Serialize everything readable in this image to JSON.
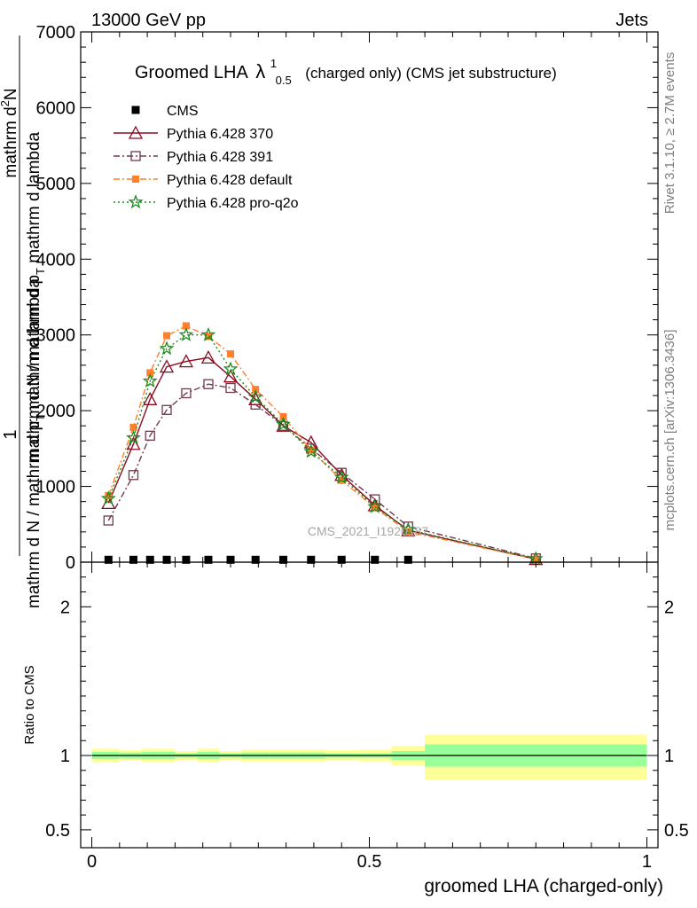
{
  "header": {
    "energy_label": "13000 GeV pp",
    "process_label": "Jets"
  },
  "side_labels": {
    "rivet": "Rivet 3.1.10, ≥ 2.7M events",
    "mcplots": "mcplots.cern.ch [arXiv:1306.3436]"
  },
  "watermark": "CMS_2021_I1920187",
  "chart_data": [
    {
      "type": "line",
      "title": {
        "main": "Groomed LHA",
        "lambda": "λ",
        "sup": "1",
        "sub": "0.5",
        "rest": "(charged only) (CMS jet substructure)"
      },
      "ylabel": {
        "one": "1",
        "line1": "mathrm d N / mathrm d p",
        "line1_sub": "T",
        "line1_rest": " mathrm d lambda",
        "numerator": "mathrm d",
        "numerator_sup": "2",
        "numerator_rest": "N",
        "denominator": "mathrm d N / mathrm d p",
        "denominator_sub": "T",
        "denominator_rest": " mathrm d lambda"
      },
      "xlim": [
        -0.02,
        1.02
      ],
      "ylim": [
        0,
        7000
      ],
      "y_ticks": [
        0,
        1000,
        2000,
        3000,
        4000,
        5000,
        6000,
        7000
      ],
      "y_tick_labels": [
        "0",
        "1000",
        "2000",
        "3000",
        "4000",
        "5000",
        "6000",
        "7000"
      ],
      "legend_position": "top-left",
      "colors": {
        "cms": "#000000",
        "py370": "#8b0a1e",
        "py391": "#6e3b4b",
        "pydef": "#ff7f2a",
        "pyq2o": "#1a8c1a"
      },
      "series": [
        {
          "name": "CMS",
          "marker": "square-filled",
          "x": [
            0.03,
            0.075,
            0.105,
            0.135,
            0.17,
            0.21,
            0.25,
            0.295,
            0.345,
            0.395,
            0.45,
            0.51,
            0.57
          ],
          "values": [
            20,
            20,
            20,
            20,
            20,
            20,
            20,
            20,
            20,
            20,
            20,
            20,
            20
          ]
        },
        {
          "name": "Pythia 6.428 370",
          "marker": "triangle-open",
          "x": [
            0.03,
            0.075,
            0.105,
            0.135,
            0.17,
            0.21,
            0.25,
            0.295,
            0.345,
            0.395,
            0.45,
            0.51,
            0.57,
            0.8
          ],
          "values": [
            780,
            1560,
            2150,
            2580,
            2650,
            2700,
            2450,
            2150,
            1800,
            1580,
            1150,
            750,
            420,
            40
          ]
        },
        {
          "name": "Pythia 6.428 391",
          "marker": "square-open",
          "x": [
            0.03,
            0.075,
            0.105,
            0.135,
            0.17,
            0.21,
            0.25,
            0.295,
            0.345,
            0.395,
            0.45,
            0.51,
            0.57,
            0.8
          ],
          "values": [
            550,
            1150,
            1670,
            2010,
            2230,
            2350,
            2300,
            2080,
            1800,
            1500,
            1180,
            830,
            470,
            50
          ]
        },
        {
          "name": "Pythia 6.428 default",
          "marker": "square-filled-small",
          "x": [
            0.03,
            0.075,
            0.105,
            0.135,
            0.17,
            0.21,
            0.25,
            0.295,
            0.345,
            0.395,
            0.45,
            0.51,
            0.57,
            0.8
          ],
          "values": [
            880,
            1780,
            2500,
            2990,
            3120,
            2980,
            2750,
            2280,
            1920,
            1480,
            1080,
            720,
            400,
            40
          ]
        },
        {
          "name": "Pythia 6.428 pro-q2o",
          "marker": "star",
          "x": [
            0.03,
            0.075,
            0.105,
            0.135,
            0.17,
            0.21,
            0.25,
            0.295,
            0.345,
            0.395,
            0.45,
            0.51,
            0.57,
            0.8
          ],
          "values": [
            840,
            1640,
            2390,
            2820,
            3000,
            3000,
            2550,
            2180,
            1820,
            1460,
            1120,
            730,
            430,
            45
          ]
        }
      ]
    },
    {
      "type": "area",
      "ylabel": "Ratio to CMS",
      "xlabel": "groomed LHA (charged-only)",
      "xlim": [
        -0.02,
        1.02
      ],
      "ylim": [
        0.38,
        2.3
      ],
      "x_ticks": [
        0,
        0.5,
        1
      ],
      "x_tick_labels": [
        "0",
        "0.5",
        "1"
      ],
      "y_ticks": [
        0.5,
        1,
        2
      ],
      "y_tick_labels": [
        "0.5",
        "1",
        "2"
      ],
      "reference_line": 1,
      "band_colors": {
        "stat": "#99ff99",
        "total": "#ffff99"
      },
      "bands": [
        {
          "x0": 0.0,
          "x1": 0.05,
          "stat_lo": 0.975,
          "stat_hi": 1.025,
          "tot_lo": 0.955,
          "tot_hi": 1.045
        },
        {
          "x0": 0.05,
          "x1": 0.09,
          "stat_lo": 0.98,
          "stat_hi": 1.02,
          "tot_lo": 0.965,
          "tot_hi": 1.035
        },
        {
          "x0": 0.09,
          "x1": 0.12,
          "stat_lo": 0.975,
          "stat_hi": 1.025,
          "tot_lo": 0.955,
          "tot_hi": 1.045
        },
        {
          "x0": 0.12,
          "x1": 0.15,
          "stat_lo": 0.975,
          "stat_hi": 1.025,
          "tot_lo": 0.955,
          "tot_hi": 1.045
        },
        {
          "x0": 0.15,
          "x1": 0.19,
          "stat_lo": 0.985,
          "stat_hi": 1.015,
          "tot_lo": 0.97,
          "tot_hi": 1.03
        },
        {
          "x0": 0.19,
          "x1": 0.23,
          "stat_lo": 0.975,
          "stat_hi": 1.025,
          "tot_lo": 0.955,
          "tot_hi": 1.045
        },
        {
          "x0": 0.23,
          "x1": 0.27,
          "stat_lo": 0.985,
          "stat_hi": 1.015,
          "tot_lo": 0.97,
          "tot_hi": 1.03
        },
        {
          "x0": 0.27,
          "x1": 0.32,
          "stat_lo": 0.98,
          "stat_hi": 1.02,
          "tot_lo": 0.96,
          "tot_hi": 1.04
        },
        {
          "x0": 0.32,
          "x1": 0.37,
          "stat_lo": 0.98,
          "stat_hi": 1.02,
          "tot_lo": 0.96,
          "tot_hi": 1.04
        },
        {
          "x0": 0.37,
          "x1": 0.42,
          "stat_lo": 0.98,
          "stat_hi": 1.02,
          "tot_lo": 0.96,
          "tot_hi": 1.04
        },
        {
          "x0": 0.42,
          "x1": 0.48,
          "stat_lo": 0.985,
          "stat_hi": 1.015,
          "tot_lo": 0.965,
          "tot_hi": 1.035
        },
        {
          "x0": 0.48,
          "x1": 0.54,
          "stat_lo": 0.985,
          "stat_hi": 1.015,
          "tot_lo": 0.96,
          "tot_hi": 1.04
        },
        {
          "x0": 0.54,
          "x1": 0.6,
          "stat_lo": 0.97,
          "stat_hi": 1.03,
          "tot_lo": 0.935,
          "tot_hi": 1.065
        },
        {
          "x0": 0.6,
          "x1": 1.0,
          "stat_lo": 0.925,
          "stat_hi": 1.075,
          "tot_lo": 0.835,
          "tot_hi": 1.14
        }
      ]
    }
  ]
}
